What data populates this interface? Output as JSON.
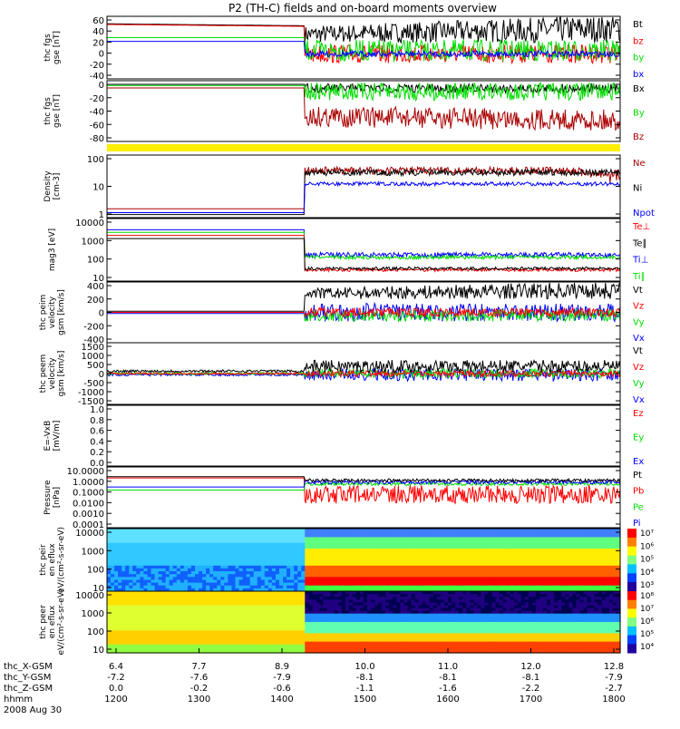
{
  "title": "P2 (TH-C) fields and on-board moments overview",
  "colors": {
    "black": "#000000",
    "red": "#ff0000",
    "darkred": "#aa0000",
    "green": "#00dd00",
    "blue": "#0000ff",
    "yellow": "#ffee00"
  },
  "footer": {
    "row_labels": [
      "thc_X-GSM",
      "thc_Y-GSM",
      "thc_Z-GSM",
      "hhmm",
      "2008 Aug 30"
    ],
    "x_gsm": [
      "6.4",
      "7.7",
      "8.9",
      "10.0",
      "11.0",
      "12.0",
      "12.8"
    ],
    "y_gsm": [
      "-7.2",
      "-7.6",
      "-7.9",
      "-8.1",
      "-8.1",
      "-8.1",
      "-7.9"
    ],
    "z_gsm": [
      "0.0",
      "-0.2",
      "-0.6",
      "-1.1",
      "-1.6",
      "-2.2",
      "-2.7"
    ],
    "hhmm": [
      "1200",
      "1300",
      "1400",
      "1500",
      "1600",
      "1700",
      "1800"
    ]
  },
  "chart_data": [
    {
      "type": "line",
      "ylabel": "thc fgs gse [nT]",
      "yticks": [
        "60",
        "40",
        "20",
        "0",
        "-20",
        "-40"
      ],
      "ylim": [
        -40,
        60
      ],
      "series": [
        {
          "name": "Bt",
          "color": "black"
        },
        {
          "name": "bz",
          "color": "red"
        },
        {
          "name": "by",
          "color": "green"
        },
        {
          "name": "bx",
          "color": "blue"
        }
      ]
    },
    {
      "type": "line",
      "ylabel": "thc fgs gse [nT]",
      "yticks": [
        "0",
        "-20",
        "-40",
        "-60",
        "-80"
      ],
      "ylim": [
        -90,
        5
      ],
      "series": [
        {
          "name": "Bx",
          "color": "black"
        },
        {
          "name": "By",
          "color": "green"
        },
        {
          "name": "Bz",
          "color": "darkred"
        }
      ]
    },
    {
      "type": "line",
      "ylabel": "Density [cm-3]",
      "yticks": [
        "100",
        "10",
        "1"
      ],
      "log": true,
      "ylim": [
        0.3,
        200
      ],
      "series": [
        {
          "name": "Ne",
          "color": "darkred"
        },
        {
          "name": "Ni",
          "color": "black"
        },
        {
          "name": "Npot",
          "color": "blue"
        }
      ]
    },
    {
      "type": "line",
      "ylabel": "mag3 [eV]",
      "yticks": [
        "10000",
        "1000",
        "100",
        "10"
      ],
      "log": true,
      "ylim": [
        10,
        10000
      ],
      "series": [
        {
          "name": "Te⊥",
          "color": "red"
        },
        {
          "name": "Te∥",
          "color": "black"
        },
        {
          "name": "Ti⊥",
          "color": "blue"
        },
        {
          "name": "Ti∥",
          "color": "green"
        }
      ]
    },
    {
      "type": "line",
      "ylabel": "thc peim velocity gsm [km/s]",
      "yticks": [
        "400",
        "200",
        "0",
        "-200",
        "-400"
      ],
      "ylim": [
        -400,
        400
      ],
      "series": [
        {
          "name": "Vt",
          "color": "black"
        },
        {
          "name": "Vz",
          "color": "red"
        },
        {
          "name": "Vy",
          "color": "green"
        },
        {
          "name": "Vx",
          "color": "blue"
        }
      ]
    },
    {
      "type": "line",
      "ylabel": "thc peem velocity gsm [km/s]",
      "yticks": [
        "1500",
        "1000",
        "500",
        "0",
        "-500",
        "-1000",
        "-1500"
      ],
      "ylim": [
        -1500,
        1500
      ],
      "series": [
        {
          "name": "Vt",
          "color": "black"
        },
        {
          "name": "Vz",
          "color": "red"
        },
        {
          "name": "Vy",
          "color": "green"
        },
        {
          "name": "Vx",
          "color": "blue"
        }
      ]
    },
    {
      "type": "line",
      "ylabel": "E=-VxB [mV/m]",
      "yticks": [
        "1.0",
        "0.8",
        "0.6",
        "0.4",
        "0.2",
        "0.0"
      ],
      "ylim": [
        0,
        1
      ],
      "series": [
        {
          "name": "Ez",
          "color": "red"
        },
        {
          "name": "Ey",
          "color": "green"
        },
        {
          "name": "Ex",
          "color": "blue"
        }
      ]
    },
    {
      "type": "line",
      "ylabel": "Pressure [nPa]",
      "yticks": [
        "10.0000",
        "1.0000",
        "0.1000",
        "0.0100",
        "0.0010",
        "0.0001"
      ],
      "log": true,
      "ylim": [
        0.0001,
        10
      ],
      "series": [
        {
          "name": "Pt",
          "color": "black"
        },
        {
          "name": "Pb",
          "color": "red"
        },
        {
          "name": "Pe",
          "color": "green"
        },
        {
          "name": "Pi",
          "color": "blue"
        }
      ]
    },
    {
      "type": "heatmap",
      "ylabel": "thc peir en eflux eV/(cm²-s-sr-eV)",
      "yticks": [
        "10000",
        "1000",
        "100",
        "10"
      ],
      "log": true,
      "ylim": [
        10,
        15000
      ],
      "colorbar": [
        "10⁷",
        "10⁶",
        "10⁵",
        "10⁴",
        "10³"
      ]
    },
    {
      "type": "heatmap",
      "ylabel": "thc peer en eflux eV/(cm²-s-sr-eV)",
      "yticks": [
        "10000",
        "1000",
        "100",
        "10"
      ],
      "log": true,
      "ylim": [
        8,
        15000
      ],
      "colorbar": [
        "10⁸",
        "10⁷",
        "10⁶",
        "10⁵",
        "10⁴"
      ]
    }
  ]
}
